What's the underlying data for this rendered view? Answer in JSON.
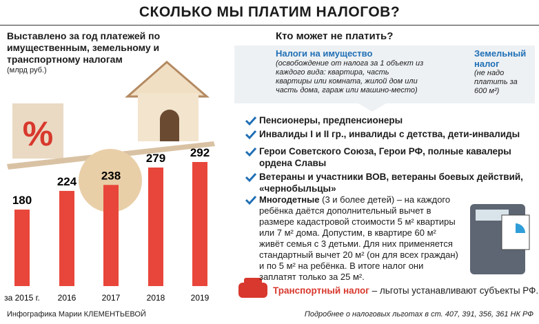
{
  "header": {
    "title": "СКОЛЬКО МЫ ПЛАТИМ НАЛОГОВ?"
  },
  "chart_data": {
    "type": "bar",
    "title": "Выставлено за год платежей по имущественным, земельному и транспортному налогам",
    "subtitle": "(млрд руб.)",
    "categories": [
      "за 2015 г.",
      "2016",
      "2017",
      "2018",
      "2019"
    ],
    "values": [
      180,
      224,
      238,
      279,
      292
    ],
    "color": "#e8463a"
  },
  "right": {
    "heading": "Кто может не платить?",
    "property_tax": {
      "title": "Налоги на имущество",
      "note": "(освобождение от налога за 1 объект из каждого вида: квартира, часть квартиры или комната, жилой дом или часть дома, гараж или машино-место)"
    },
    "land_tax": {
      "title": "Земельный налог",
      "note": "(не надо платить за 600 м²)"
    },
    "list": [
      "Пенсионеры, предпенсионеры",
      "Инвалиды I и II гр., инвалиды с детства, дети-инвалиды",
      "Герои Советского Союза, Герои РФ, полные кавалеры ордена Славы",
      "Ветераны и участники ВОВ, ветераны боевых действий, «чернобыльцы»"
    ],
    "large_families": {
      "title": "Многодетные",
      "text": "(3 и более детей) – на каждого ребёнка даётся дополнительный вычет в размере кадастровой стоимости 5 м² квартиры или 7 м² дома. Допустим, в квартире 60 м² живёт семья с 3 детьми. Для них применяется стандартный вычет 20 м² (он для всех граждан) и по 5 м² на ребёнка. В итоге налог они заплатят только за 25 м²."
    },
    "transport": {
      "title": "Транспортный налог",
      "text": " – льготы устанавливают субъекты РФ."
    }
  },
  "footer": {
    "credit": "Инфографика Марии КЛЕМЕНТЬЕВОЙ",
    "source": "Подробнее о налоговых льготах в ст. 407, 391, 356, 361 НК РФ"
  }
}
